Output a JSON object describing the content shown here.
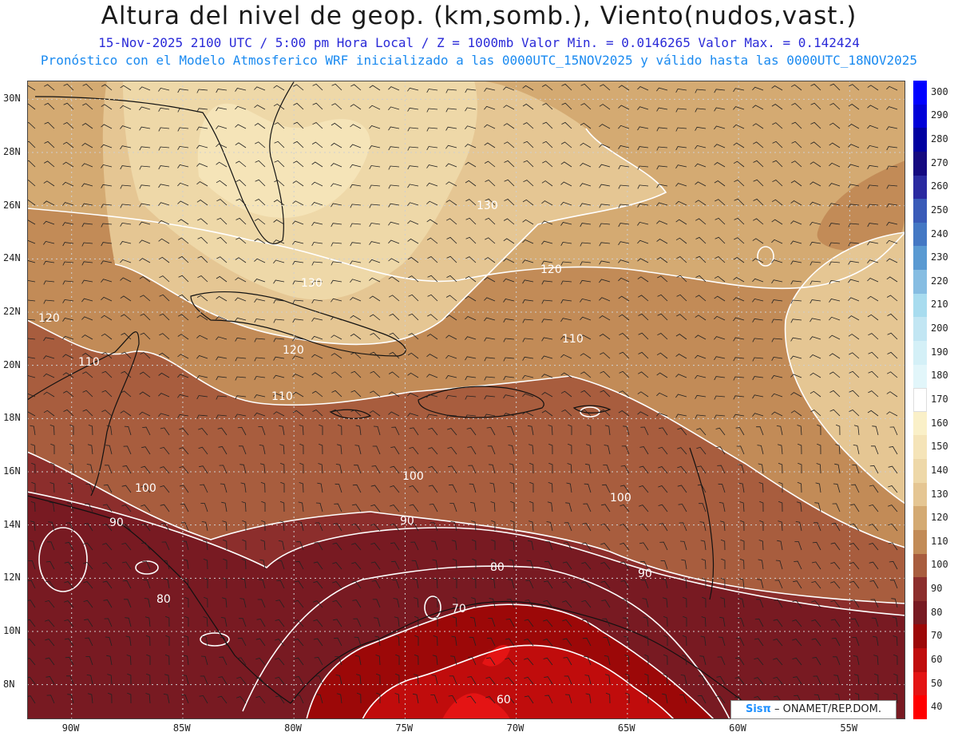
{
  "title": "Altura del nivel de geop. (km,somb.), Viento(nudos,vast.)",
  "subtitle_1": "15-Nov-2025  2100 UTC / 5:00 pm Hora Local / Z = 1000mb  Valor Min. = 0.0146265  Valor Max. = 0.142424",
  "subtitle_2": "Pronóstico con el Modelo Atmosferico WRF inicializado a las 0000UTC_15NOV2025 y válido hasta las  0000UTC_18NOV2025",
  "credit": {
    "logo": "Sisπ",
    "text": "– ONAMET/REP.DOM."
  },
  "axes": {
    "x_labels": [
      "90W",
      "85W",
      "80W",
      "75W",
      "70W",
      "65W",
      "60W",
      "55W"
    ],
    "y_labels": [
      "30N",
      "28N",
      "26N",
      "24N",
      "22N",
      "20N",
      "18N",
      "16N",
      "14N",
      "12N",
      "10N",
      "8N"
    ],
    "lon_range": [
      -92,
      -52.5
    ],
    "lat_range": [
      6.7,
      30.7
    ],
    "grid": "dotted"
  },
  "colorbar": {
    "levels": [
      {
        "label": "300",
        "color": "#0000ff"
      },
      {
        "label": "290",
        "color": "#0000d8"
      },
      {
        "label": "280",
        "color": "#0000a0"
      },
      {
        "label": "270",
        "color": "#150a80"
      },
      {
        "label": "260",
        "color": "#2a2aa0"
      },
      {
        "label": "250",
        "color": "#3a5bb8"
      },
      {
        "label": "240",
        "color": "#4478c4"
      },
      {
        "label": "230",
        "color": "#5a9ad2"
      },
      {
        "label": "220",
        "color": "#86bde2"
      },
      {
        "label": "210",
        "color": "#a8dcef"
      },
      {
        "label": "200",
        "color": "#c2e6f3"
      },
      {
        "label": "190",
        "color": "#d4f0f7"
      },
      {
        "label": "180",
        "color": "#e2f6fa"
      },
      {
        "label": "170",
        "color": "#ffffff"
      },
      {
        "label": "160",
        "color": "#faf0c8"
      },
      {
        "label": "150",
        "color": "#f5e4b8"
      },
      {
        "label": "140",
        "color": "#eed8a8"
      },
      {
        "label": "130",
        "color": "#e5c693"
      },
      {
        "label": "120",
        "color": "#d4aa72"
      },
      {
        "label": "110",
        "color": "#c28b57"
      },
      {
        "label": "100",
        "color": "#a85d3e"
      },
      {
        "label": "90",
        "color": "#8c2e2c"
      },
      {
        "label": "80",
        "color": "#781a22"
      },
      {
        "label": "70",
        "color": "#9c0808"
      },
      {
        "label": "60",
        "color": "#c00c0c"
      },
      {
        "label": "50",
        "color": "#e41414"
      },
      {
        "label": "40",
        "color": "#ff0000"
      }
    ]
  },
  "contour_labels": [
    "130",
    "130",
    "120",
    "120",
    "120",
    "110",
    "110",
    "110",
    "100",
    "100",
    "100",
    "90",
    "90",
    "90",
    "80",
    "80",
    "70",
    "60"
  ]
}
